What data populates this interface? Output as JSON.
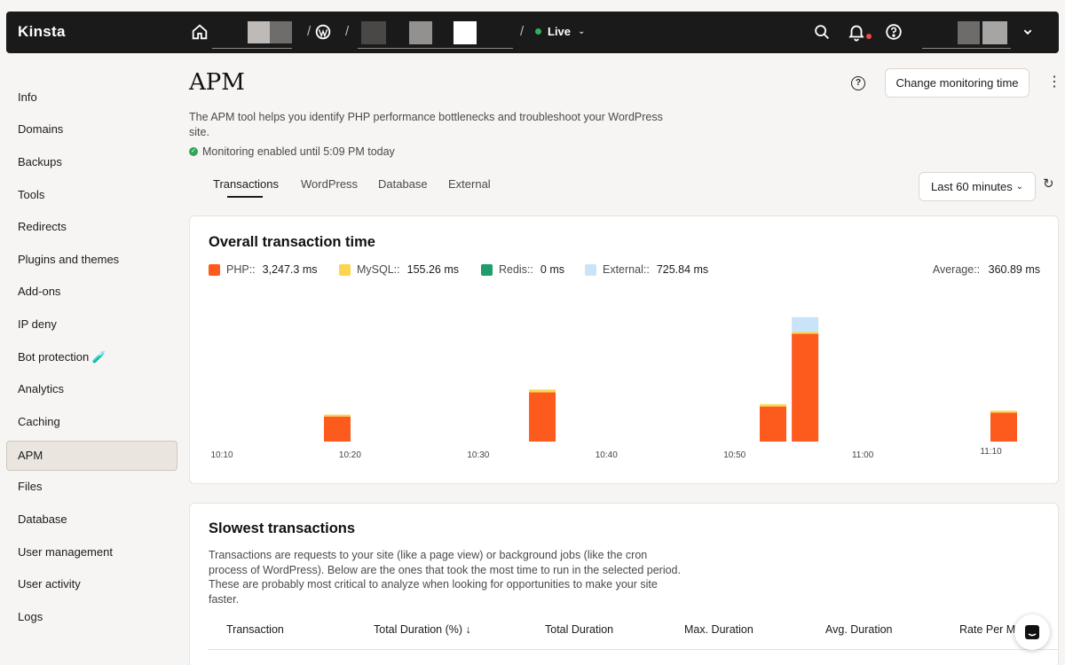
{
  "topbar": {
    "brand": "Kinsta",
    "environment": "Live",
    "icons": [
      "home-icon",
      "wordpress-icon",
      "search-icon",
      "bell-icon",
      "help-icon",
      "chevron-down-icon"
    ]
  },
  "sidebar": {
    "items": [
      {
        "label": "Info"
      },
      {
        "label": "Domains"
      },
      {
        "label": "Backups"
      },
      {
        "label": "Tools"
      },
      {
        "label": "Redirects"
      },
      {
        "label": "Plugins and themes"
      },
      {
        "label": "Add-ons"
      },
      {
        "label": "IP deny"
      },
      {
        "label": "Bot protection 🧪"
      },
      {
        "label": "Analytics"
      },
      {
        "label": "Caching"
      },
      {
        "label": "APM",
        "active": true
      },
      {
        "label": "Files"
      },
      {
        "label": "Database"
      },
      {
        "label": "User management"
      },
      {
        "label": "User activity"
      },
      {
        "label": "Logs"
      }
    ]
  },
  "header": {
    "title": "APM",
    "description": "The APM tool helps you identify PHP performance bottlenecks and troubleshoot your WordPress site.",
    "monitoring_status": "Monitoring enabled until 5:09 PM today",
    "change_button": "Change monitoring time",
    "help": "?",
    "more": "⋮"
  },
  "tabs": [
    {
      "label": "Transactions",
      "active": true
    },
    {
      "label": "WordPress"
    },
    {
      "label": "Database"
    },
    {
      "label": "External"
    }
  ],
  "time_range": {
    "selected": "Last 60 minutes"
  },
  "overall": {
    "title": "Overall transaction time",
    "legend": [
      {
        "name": "PHP::",
        "value": "3,247.3 ms",
        "color": "#fd5a1e"
      },
      {
        "name": "MySQL::",
        "value": "155.26 ms",
        "color": "#fbd54e"
      },
      {
        "name": "Redis::",
        "value": "0 ms",
        "color": "#1f9d6b"
      },
      {
        "name": "External::",
        "value": "725.84 ms",
        "color": "#c9e3f8"
      }
    ],
    "average_label": "Average::",
    "average_value": "360.89 ms"
  },
  "chart_data": {
    "type": "bar",
    "stacked": true,
    "x_tick_labels": [
      "10:10",
      "10:20",
      "10:30",
      "10:40",
      "10:50",
      "11:00",
      "11:10"
    ],
    "x_unit": "minutes",
    "x_range": [
      10,
      71
    ],
    "x": [
      19,
      35,
      53,
      55.5,
      71
    ],
    "series": [
      {
        "name": "PHP",
        "color": "#fd5a1e",
        "values": [
          265,
          520,
          370,
          1140,
          305
        ]
      },
      {
        "name": "MySQL",
        "color": "#fbd54e",
        "values": [
          20,
          30,
          25,
          20,
          20
        ]
      },
      {
        "name": "Redis",
        "color": "#1f9d6b",
        "values": [
          0,
          0,
          0,
          0,
          0
        ]
      },
      {
        "name": "External",
        "color": "#c9e3f8",
        "values": [
          0,
          0,
          0,
          155,
          0
        ]
      }
    ],
    "y_units": "ms",
    "ylim": [
      0,
      1500
    ],
    "y_axis_visible": false,
    "grid": false,
    "legend_position": "top-left"
  },
  "slowest": {
    "title": "Slowest transactions",
    "description": "Transactions are requests to your site (like a page view) or background jobs (like the cron process of WordPress). Below are the ones that took the most time to run in the selected period. These are probably most critical to analyze when looking for opportunities to make your site faster.",
    "columns": [
      "Transaction",
      "Total Duration (%) ↓",
      "Total Duration",
      "Max. Duration",
      "Avg. Duration",
      "Rate Per Mi"
    ]
  }
}
